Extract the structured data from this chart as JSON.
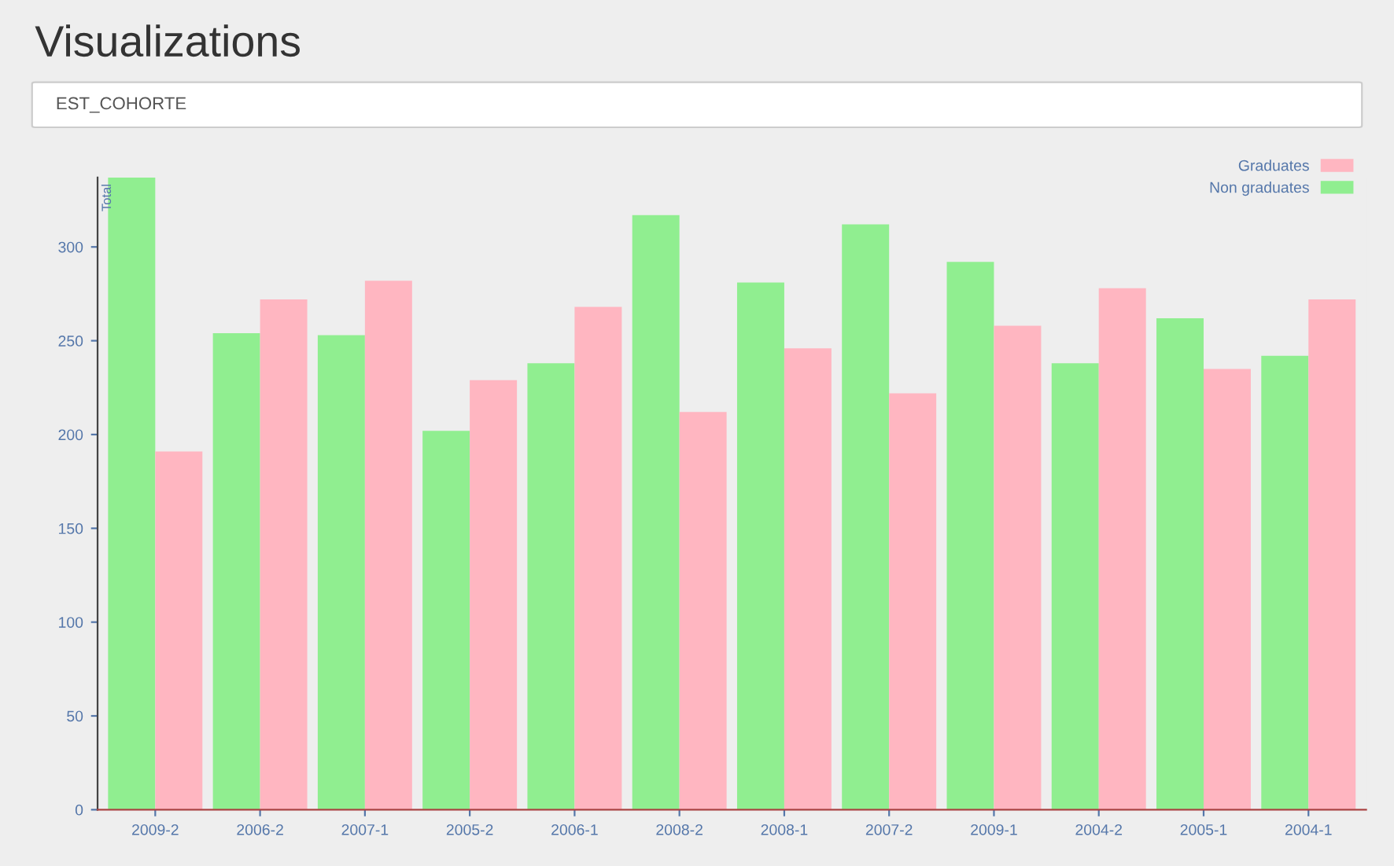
{
  "chart_data": {
    "type": "bar",
    "title": "Visualizations",
    "subtitle": "EST_COHORTE",
    "ylabel": "Total",
    "categories": [
      "2009-2",
      "2006-2",
      "2007-1",
      "2005-2",
      "2006-1",
      "2008-2",
      "2008-1",
      "2007-2",
      "2009-1",
      "2004-2",
      "2005-1",
      "2004-1"
    ],
    "series": [
      {
        "name": "Non graduates",
        "color": "#90ee90",
        "values": [
          337,
          254,
          253,
          202,
          238,
          317,
          281,
          312,
          292,
          238,
          262,
          242
        ]
      },
      {
        "name": "Graduates",
        "color": "#ffb6c1",
        "values": [
          191,
          272,
          282,
          229,
          268,
          212,
          246,
          222,
          258,
          278,
          235,
          272
        ]
      }
    ],
    "ylim": [
      0,
      337
    ],
    "yticks": [
      0,
      50,
      100,
      150,
      200,
      250,
      300
    ],
    "grid": false,
    "legend": "top right"
  }
}
